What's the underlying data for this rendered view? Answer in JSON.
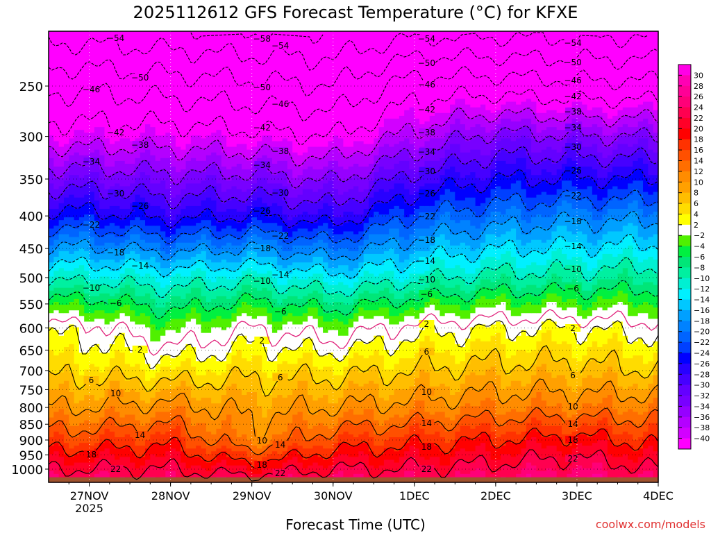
{
  "chart_data": {
    "type": "heatmap",
    "title": "2025112612 GFS Forecast Temperature (°C) for KFXE",
    "xlabel": "Forecast Time (UTC)",
    "ylabel": "Pressure (hPa)",
    "credit": "coolwx.com/models",
    "x_ticks": [
      {
        "label": "27NOV",
        "sub": "2025",
        "hour": 12
      },
      {
        "label": "28NOV",
        "hour": 36
      },
      {
        "label": "29NOV",
        "hour": 60
      },
      {
        "label": "30NOV",
        "hour": 84
      },
      {
        "label": "1DEC",
        "hour": 108
      },
      {
        "label": "2DEC",
        "hour": 132
      },
      {
        "label": "3DEC",
        "hour": 156
      },
      {
        "label": "4DEC",
        "hour": 180
      }
    ],
    "xlim_hours": [
      0,
      180
    ],
    "ylim_hPa": [
      1049,
      205
    ],
    "y_ticks": [
      250,
      300,
      350,
      400,
      450,
      500,
      550,
      600,
      650,
      700,
      750,
      800,
      850,
      900,
      950,
      1000
    ],
    "levels_hPa": [
      1000,
      900,
      800,
      700,
      600,
      500,
      400,
      300,
      250,
      210
    ],
    "profiles": [
      {
        "hour": 0,
        "temps": [
          22,
          16,
          10,
          5,
          1,
          -11,
          -25,
          -40,
          -47,
          -55
        ]
      },
      {
        "hour": 12,
        "temps": [
          22,
          16,
          10,
          5,
          1,
          -11,
          -25,
          -40,
          -47,
          -55
        ]
      },
      {
        "hour": 36,
        "temps": [
          22,
          17,
          11,
          4,
          -3,
          -12,
          -27,
          -40,
          -48,
          -56
        ]
      },
      {
        "hour": 60,
        "temps": [
          20,
          11,
          9,
          5,
          0,
          -11,
          -26,
          -41,
          -49,
          -57
        ]
      },
      {
        "hour": 84,
        "temps": [
          22,
          16,
          10,
          5,
          -2,
          -13,
          -28,
          -42,
          -50,
          -57
        ]
      },
      {
        "hour": 108,
        "temps": [
          22,
          17,
          11,
          6,
          1,
          -11,
          -22,
          -37,
          -44,
          -54
        ]
      },
      {
        "hour": 132,
        "temps": [
          23,
          18,
          12,
          7,
          2,
          -9,
          -20,
          -33,
          -44,
          -54
        ]
      },
      {
        "hour": 156,
        "temps": [
          24,
          19,
          12,
          7,
          2,
          -9,
          -19,
          -34,
          -45,
          -54
        ]
      },
      {
        "hour": 180,
        "temps": [
          22,
          17,
          12,
          6,
          1,
          -8,
          -19,
          -34,
          -45,
          -54
        ]
      }
    ],
    "isotherms": [
      -58,
      -54,
      -50,
      -46,
      -42,
      -38,
      -34,
      -30,
      -26,
      -22,
      -18,
      -14,
      -10,
      -6,
      2,
      6,
      10,
      14,
      18,
      22
    ],
    "colorbar": {
      "labels": [
        30,
        28,
        26,
        24,
        22,
        20,
        18,
        16,
        14,
        12,
        10,
        8,
        6,
        4,
        2,
        -2,
        -4,
        -6,
        -8,
        -10,
        -12,
        -14,
        -16,
        -18,
        -20,
        -22,
        -24,
        -26,
        -28,
        -30,
        -32,
        -34,
        -36,
        -38,
        -40
      ],
      "colors": [
        "#ff00e6",
        "#ff00b4",
        "#ff0096",
        "#ff0078",
        "#ff0050",
        "#ff0028",
        "#ff0000",
        "#ff3200",
        "#ff5000",
        "#ff6e00",
        "#ff8c00",
        "#ffa000",
        "#ffbe00",
        "#ffdc00",
        "#ffff00",
        "#ffffff",
        "#50f000",
        "#00f040",
        "#00e678",
        "#00f0a0",
        "#00f0d2",
        "#00f0ff",
        "#00c8ff",
        "#00a0ff",
        "#0082ff",
        "#0064ff",
        "#0040ff",
        "#0000ff",
        "#2800ff",
        "#4600ff",
        "#6400ff",
        "#7800ff",
        "#9600ff",
        "#b400ff",
        "#d200ff",
        "#ff00ff"
      ]
    }
  }
}
